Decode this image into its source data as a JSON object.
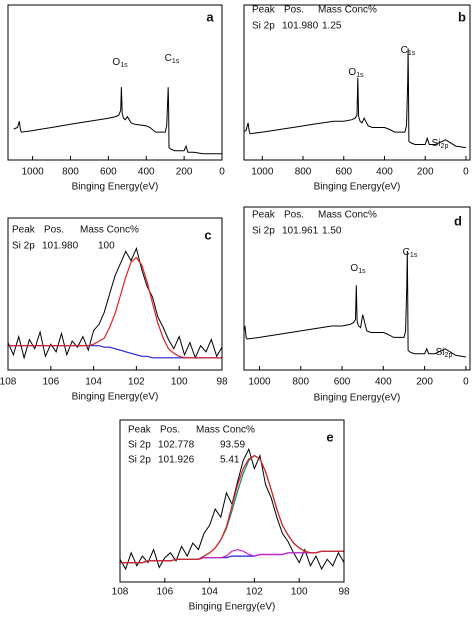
{
  "chart_data": [
    {
      "type": "line",
      "label": "a",
      "x_label": "Binging Energy(eV)",
      "x": [
        1100,
        1080,
        1070,
        1065,
        1060,
        1000,
        950,
        900,
        850,
        800,
        750,
        700,
        650,
        600,
        560,
        545,
        535,
        531,
        527,
        520,
        510,
        500,
        480,
        460,
        400,
        380,
        350,
        300,
        292,
        286,
        284,
        282,
        280,
        270,
        250,
        200,
        190,
        180,
        150,
        100,
        50,
        0
      ],
      "series": [
        {
          "color": "#000000",
          "values": [
            20,
            21,
            25,
            20,
            18,
            19,
            20,
            21,
            22,
            23,
            24,
            25,
            26,
            27,
            28,
            29,
            32,
            47,
            30,
            27,
            26,
            28,
            24,
            23,
            22,
            21,
            18,
            18,
            22,
            40,
            47,
            35,
            8,
            7,
            6,
            6,
            9,
            5,
            5,
            4,
            4,
            4
          ]
        }
      ],
      "xlim": [
        1130,
        0
      ],
      "xticks": [
        1000,
        800,
        600,
        400,
        200,
        0
      ],
      "ylim": [
        0,
        100
      ],
      "annotations": [
        {
          "text": "O",
          "sub": "1s"
        },
        {
          "text": "C",
          "sub": "1s"
        }
      ]
    },
    {
      "type": "line",
      "label": "b",
      "x_label": "Binging Energy(eV)",
      "table": {
        "header": [
          "Peak",
          "Pos.",
          "Mass Conc%"
        ],
        "rows": [
          [
            "Si 2p",
            "101.980",
            "1.25"
          ]
        ],
        "header_color": "#e02020",
        "row_colors": [
          "#111111"
        ]
      },
      "x": [
        1100,
        1080,
        1070,
        1065,
        1060,
        1000,
        950,
        900,
        850,
        800,
        750,
        700,
        650,
        600,
        560,
        545,
        535,
        531,
        527,
        520,
        510,
        500,
        480,
        460,
        400,
        380,
        350,
        300,
        292,
        286,
        284,
        282,
        280,
        270,
        250,
        200,
        190,
        180,
        150,
        100,
        50,
        0
      ],
      "series": [
        {
          "color": "#000000",
          "values": [
            18,
            19,
            24,
            19,
            17,
            18,
            19,
            20,
            21,
            22,
            23,
            24,
            25,
            25,
            26,
            27,
            29,
            53,
            28,
            25,
            24,
            27,
            22,
            21,
            21,
            20,
            18,
            18,
            22,
            50,
            72,
            45,
            12,
            11,
            10,
            10,
            14,
            10,
            10,
            13,
            9,
            8
          ]
        }
      ],
      "xlim": [
        1090,
        -20
      ],
      "xticks": [
        1000,
        800,
        600,
        400,
        200,
        0
      ],
      "ylim": [
        0,
        100
      ],
      "annotations": [
        {
          "text": "O",
          "sub": "1s"
        },
        {
          "text": "C",
          "sub": "1s"
        },
        {
          "text": "Si",
          "sub": "2p"
        }
      ]
    },
    {
      "type": "line",
      "label": "c",
      "x_label": "Binging Energy(eV)",
      "table": {
        "header": [
          "Peak",
          "Pos.",
          "Mass Conc%"
        ],
        "rows": [
          [
            "Si 2p",
            "101.980",
            "100"
          ]
        ],
        "header_color": "#e02020",
        "row_colors": [
          "#111111"
        ]
      },
      "x": [
        108,
        107.75,
        107.5,
        107.25,
        107,
        106.75,
        106.5,
        106.25,
        106,
        105.75,
        105.5,
        105.25,
        105,
        104.75,
        104.5,
        104.25,
        104,
        103.75,
        103.5,
        103.25,
        103,
        102.75,
        102.5,
        102.25,
        102,
        101.75,
        101.5,
        101.25,
        101,
        100.75,
        100.5,
        100.25,
        100,
        99.75,
        99.5,
        99.25,
        99,
        98.75,
        98.5,
        98.25,
        98
      ],
      "series": [
        {
          "color": "#000000",
          "values": [
            18,
            10,
            22,
            8,
            20,
            14,
            25,
            9,
            17,
            12,
            24,
            10,
            19,
            15,
            22,
            13,
            26,
            30,
            38,
            50,
            62,
            70,
            78,
            72,
            80,
            66,
            55,
            48,
            35,
            28,
            20,
            14,
            22,
            10,
            18,
            8,
            16,
            12,
            20,
            9,
            15
          ]
        },
        {
          "color": "#2222dd",
          "values": [
            16,
            16,
            16,
            16,
            16,
            16,
            16,
            16,
            16,
            16,
            16,
            16,
            16,
            16,
            16,
            16,
            16,
            16,
            15,
            15,
            14,
            13,
            12,
            11,
            10,
            9,
            9,
            8,
            8,
            8,
            8,
            8,
            8,
            8,
            8,
            8,
            8,
            8,
            8,
            8,
            8
          ]
        },
        {
          "color": "#e02020",
          "values": [
            16,
            16,
            16,
            16,
            16,
            16,
            16,
            16,
            16,
            16,
            16,
            16,
            16,
            16,
            16,
            16,
            17,
            19,
            21,
            28,
            37,
            49,
            61,
            71,
            74,
            69,
            58,
            44,
            31,
            21,
            14,
            11,
            9,
            8,
            8,
            8,
            8,
            8,
            8,
            8,
            8
          ]
        }
      ],
      "xlim": [
        108,
        98
      ],
      "xticks": [
        108,
        106,
        104,
        102,
        100,
        98
      ],
      "ylim": [
        0,
        100
      ]
    },
    {
      "type": "line",
      "label": "d",
      "x_label": "Binging Energy(eV)",
      "table": {
        "header": [
          "Peak",
          "Pos.",
          "Mass Conc%"
        ],
        "rows": [
          [
            "Si 2p",
            "101.961",
            "1.50"
          ]
        ],
        "header_color": "#e02020",
        "row_colors": [
          "#111111"
        ]
      },
      "x": [
        1100,
        1080,
        1070,
        1065,
        1060,
        1000,
        950,
        900,
        850,
        800,
        750,
        700,
        650,
        600,
        560,
        545,
        535,
        531,
        527,
        520,
        510,
        500,
        480,
        460,
        400,
        380,
        350,
        300,
        292,
        286,
        284,
        282,
        280,
        270,
        250,
        200,
        190,
        180,
        150,
        100,
        50,
        0
      ],
      "series": [
        {
          "color": "#000000",
          "values": [
            20,
            21,
            27,
            20,
            19,
            20,
            21,
            22,
            23,
            24,
            25,
            26,
            27,
            27,
            28,
            29,
            31,
            52,
            30,
            27,
            26,
            34,
            24,
            23,
            23,
            22,
            20,
            20,
            24,
            52,
            73,
            47,
            12,
            11,
            10,
            10,
            13,
            10,
            10,
            13,
            9,
            8
          ]
        }
      ],
      "xlim": [
        1075,
        -20
      ],
      "xticks": [
        1000,
        800,
        600,
        400,
        200,
        0
      ],
      "ylim": [
        0,
        100
      ],
      "annotations": [
        {
          "text": "O",
          "sub": "1s"
        },
        {
          "text": "C",
          "sub": "1s"
        },
        {
          "text": "Si",
          "sub": "2p"
        }
      ]
    },
    {
      "type": "line",
      "label": "e",
      "x_label": "Binging Energy(eV)",
      "table": {
        "header": [
          "Peak",
          "Pos.",
          "Mass Conc%"
        ],
        "rows": [
          [
            "Si 2p",
            "102.778",
            "93.59"
          ],
          [
            "Si 2p",
            "101.926",
            "5.41"
          ]
        ],
        "header_color": "#e02020",
        "row_colors": [
          "#11857a",
          "#cc22cc"
        ]
      },
      "x": [
        108,
        107.75,
        107.5,
        107.25,
        107,
        106.75,
        106.5,
        106.25,
        106,
        105.75,
        105.5,
        105.25,
        105,
        104.75,
        104.5,
        104.25,
        104,
        103.75,
        103.5,
        103.25,
        103,
        102.75,
        102.5,
        102.25,
        102,
        101.75,
        101.5,
        101.25,
        101,
        100.75,
        100.5,
        100.25,
        100,
        99.75,
        99.5,
        99.25,
        99,
        98.75,
        98.5,
        98.25,
        98
      ],
      "series": [
        {
          "color": "#000000",
          "values": [
            14,
            8,
            18,
            10,
            16,
            12,
            20,
            9,
            15,
            18,
            13,
            22,
            16,
            24,
            20,
            30,
            35,
            45,
            40,
            55,
            48,
            62,
            75,
            82,
            70,
            78,
            60,
            52,
            40,
            30,
            25,
            18,
            12,
            20,
            10,
            16,
            8,
            14,
            10,
            18,
            12
          ]
        },
        {
          "color": "#2222dd",
          "values": [
            12,
            12,
            12,
            12,
            12,
            13,
            13,
            13,
            13,
            13,
            14,
            14,
            14,
            14,
            14,
            15,
            15,
            15,
            15,
            15,
            16,
            16,
            16,
            16,
            16,
            17,
            17,
            17,
            17,
            17,
            18,
            18,
            18,
            18,
            18,
            18,
            19,
            19,
            19,
            19,
            19
          ]
        },
        {
          "color": "#cc22cc",
          "values": [
            12,
            12,
            12,
            12,
            12,
            13,
            13,
            13,
            13,
            13,
            14,
            14,
            14,
            14,
            14,
            15,
            15,
            15,
            15,
            16,
            19,
            20,
            19,
            17,
            16,
            17,
            17,
            17,
            17,
            17,
            18,
            18,
            18,
            18,
            18,
            18,
            19,
            19,
            19,
            19,
            19
          ]
        },
        {
          "color": "#11857a",
          "values": [
            12,
            12,
            12,
            12,
            12,
            13,
            13,
            13,
            13,
            13,
            14,
            14,
            14,
            14,
            14,
            16,
            18,
            21,
            26,
            33,
            44,
            56,
            67,
            75,
            78,
            76,
            68,
            57,
            45,
            35,
            29,
            24,
            21,
            19,
            18,
            18,
            19,
            19,
            19,
            19,
            19
          ]
        },
        {
          "color": "#e02020",
          "values": [
            12,
            12,
            12,
            12,
            12,
            13,
            13,
            13,
            13,
            13,
            14,
            14,
            14,
            14,
            14,
            16,
            18,
            21,
            26,
            34,
            47,
            60,
            70,
            76,
            78,
            76,
            68,
            57,
            45,
            35,
            29,
            24,
            21,
            19,
            18,
            18,
            19,
            19,
            19,
            19,
            19
          ]
        }
      ],
      "xlim": [
        108,
        98
      ],
      "xticks": [
        108,
        106,
        104,
        102,
        100,
        98
      ],
      "ylim": [
        0,
        100
      ]
    }
  ]
}
